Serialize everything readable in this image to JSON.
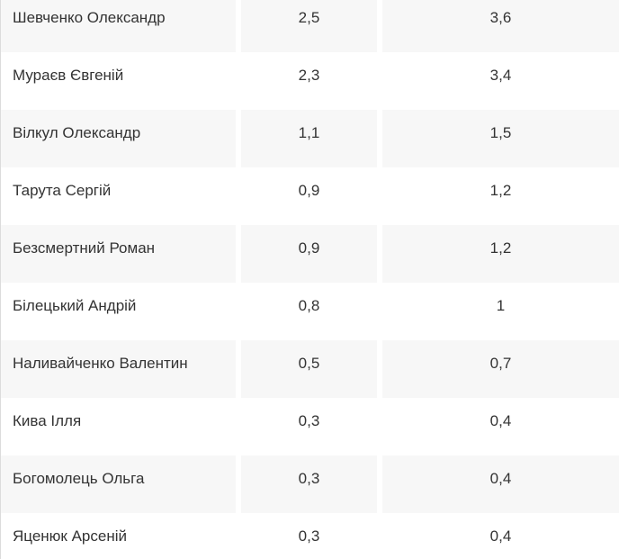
{
  "widget": {
    "description": "ratings-table-fragment"
  },
  "table": {
    "rows": [
      {
        "name": "Шевченко Олександр",
        "col1": "2,5",
        "col2": "3,6"
      },
      {
        "name": "Мураєв Євгеній",
        "col1": "2,3",
        "col2": "3,4"
      },
      {
        "name": "Вілкул Олександр",
        "col1": "1,1",
        "col2": "1,5"
      },
      {
        "name": "Тарута Сергій",
        "col1": "0,9",
        "col2": "1,2"
      },
      {
        "name": "Безсмертний Роман",
        "col1": "0,9",
        "col2": "1,2"
      },
      {
        "name": "Білецький Андрій",
        "col1": "0,8",
        "col2": "1"
      },
      {
        "name": "Наливайченко Валентин",
        "col1": "0,5",
        "col2": "0,7"
      },
      {
        "name": "Кива Ілля",
        "col1": "0,3",
        "col2": "0,4"
      },
      {
        "name": "Богомолець Ольга",
        "col1": "0,3",
        "col2": "0,4"
      },
      {
        "name": "Яценюк Арсеній",
        "col1": "0,3",
        "col2": "0,4"
      }
    ]
  },
  "chart_data": {
    "type": "table",
    "columns": [
      "name",
      "value_1",
      "value_2"
    ],
    "rows": [
      [
        "Шевченко Олександр",
        2.5,
        3.6
      ],
      [
        "Мураєв Євгеній",
        2.3,
        3.4
      ],
      [
        "Вілкул Олександр",
        1.1,
        1.5
      ],
      [
        "Тарута Сергій",
        0.9,
        1.2
      ],
      [
        "Безсмертний Роман",
        0.9,
        1.2
      ],
      [
        "Білецький Андрій",
        0.8,
        1
      ],
      [
        "Наливайченко Валентин",
        0.5,
        0.7
      ],
      [
        "Кива Ілля",
        0.3,
        0.4
      ],
      [
        "Богомолець Ольга",
        0.3,
        0.4
      ],
      [
        "Яценюк Арсеній",
        0.3,
        0.4
      ]
    ],
    "title": "",
    "notes": "decimal comma used in displayed values; no header row visible; first and last rows vertically cropped"
  },
  "colors": {
    "row_alt_bg": "#f7f7f7",
    "row_bg": "#ffffff",
    "text": "#333333",
    "left_border": "#dcdcdc"
  }
}
